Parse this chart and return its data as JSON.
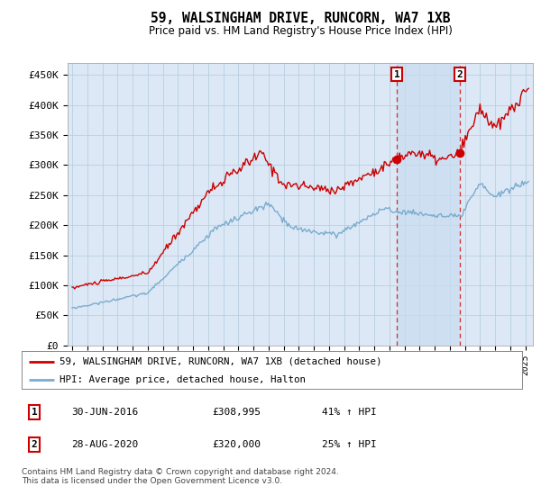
{
  "title": "59, WALSINGHAM DRIVE, RUNCORN, WA7 1XB",
  "subtitle": "Price paid vs. HM Land Registry's House Price Index (HPI)",
  "ylabel_ticks": [
    "£0",
    "£50K",
    "£100K",
    "£150K",
    "£200K",
    "£250K",
    "£300K",
    "£350K",
    "£400K",
    "£450K"
  ],
  "ytick_values": [
    0,
    50000,
    100000,
    150000,
    200000,
    250000,
    300000,
    350000,
    400000,
    450000
  ],
  "ylim": [
    0,
    470000
  ],
  "xlim_start": 1994.7,
  "xlim_end": 2025.5,
  "background_color": "#ffffff",
  "plot_bg_color": "#dce8f5",
  "grid_color": "#b8cfe0",
  "shade_color": "#c8dcf0",
  "legend_label_red": "59, WALSINGHAM DRIVE, RUNCORN, WA7 1XB (detached house)",
  "legend_label_blue": "HPI: Average price, detached house, Halton",
  "sale1_date": "30-JUN-2016",
  "sale1_price": "£308,995",
  "sale1_hpi": "41% ↑ HPI",
  "sale1_x": 2016.5,
  "sale1_y": 308995,
  "sale2_date": "28-AUG-2020",
  "sale2_price": "£320,000",
  "sale2_hpi": "25% ↑ HPI",
  "sale2_x": 2020.67,
  "sale2_y": 320000,
  "footer": "Contains HM Land Registry data © Crown copyright and database right 2024.\nThis data is licensed under the Open Government Licence v3.0.",
  "red_color": "#cc0000",
  "blue_color": "#7aacce",
  "title_font": "DejaVu Sans",
  "mono_font": "DejaVu Sans Mono"
}
